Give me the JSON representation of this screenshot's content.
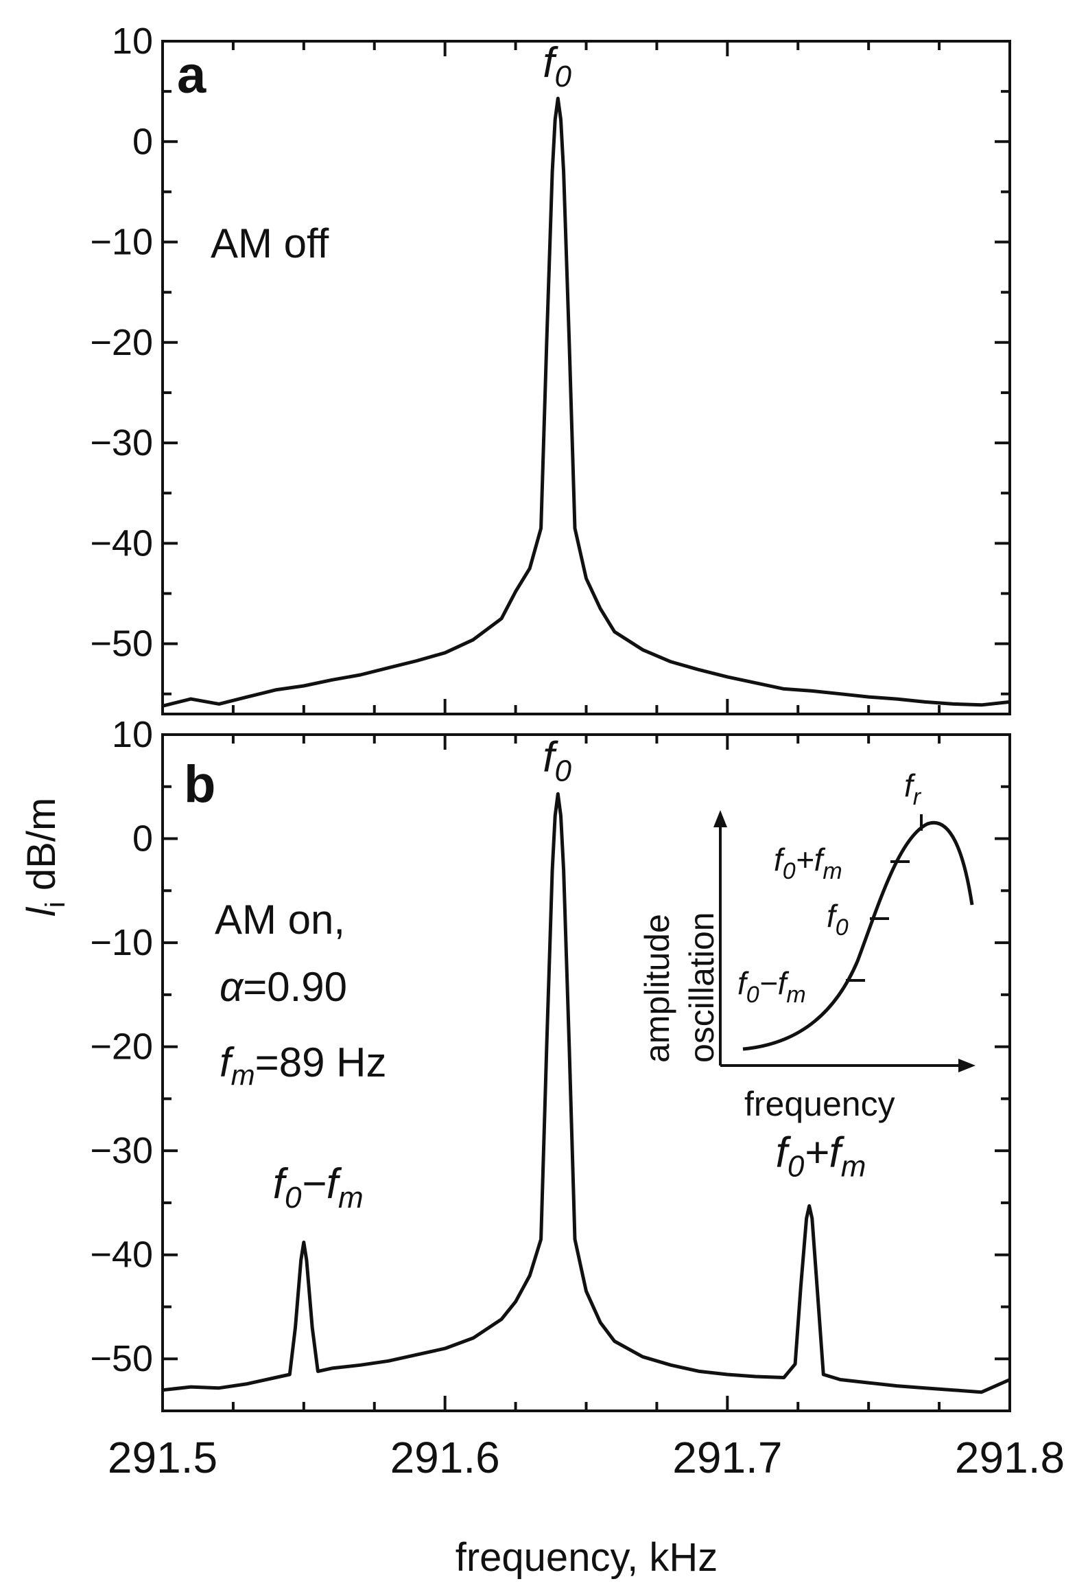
{
  "figure": {
    "x_axis": {
      "label": "frequency, kHz",
      "range": [
        291.5,
        291.8
      ],
      "tick_labels": [
        "291.5",
        "291.6",
        "291.7",
        "291.8"
      ]
    },
    "y_axis": {
      "label_main": "l",
      "label_sub": "i",
      "label_unit": " dB/m"
    }
  },
  "chart_data": [
    {
      "type": "line",
      "panel": "a",
      "note": "AM off",
      "peak_labels": [
        {
          "text": "f",
          "sub": "0",
          "x": 291.64,
          "y": 7
        }
      ],
      "xlim": [
        291.5,
        291.8
      ],
      "ylim": [
        -57,
        10
      ],
      "y_ticks": [
        10,
        0,
        -10,
        -20,
        -30,
        -40,
        -50
      ],
      "y_tick_labels": [
        "10",
        "0",
        "−10",
        "−20",
        "−30",
        "−40",
        "−50"
      ],
      "series": [
        {
          "name": "AM off",
          "x": [
            291.5,
            291.51,
            291.52,
            291.53,
            291.54,
            291.55,
            291.56,
            291.57,
            291.58,
            291.59,
            291.6,
            291.61,
            291.62,
            291.625,
            291.63,
            291.634,
            291.636,
            291.638,
            291.639,
            291.64,
            291.641,
            291.642,
            291.644,
            291.646,
            291.65,
            291.655,
            291.66,
            291.67,
            291.68,
            291.69,
            291.7,
            291.71,
            291.72,
            291.73,
            291.74,
            291.75,
            291.76,
            291.77,
            291.78,
            291.79,
            291.8
          ],
          "y": [
            -56.2,
            -55.5,
            -56.0,
            -55.3,
            -54.6,
            -54.2,
            -53.6,
            -53.1,
            -52.4,
            -51.7,
            -50.9,
            -49.6,
            -47.5,
            -44.8,
            -42.5,
            -38.5,
            -20.0,
            -3.0,
            2.2,
            4.3,
            2.2,
            -3.0,
            -20.0,
            -38.5,
            -43.5,
            -46.5,
            -48.8,
            -50.6,
            -51.8,
            -52.6,
            -53.3,
            -53.9,
            -54.5,
            -54.7,
            -55.0,
            -55.3,
            -55.5,
            -55.8,
            -56.0,
            -56.1,
            -55.8
          ]
        }
      ]
    },
    {
      "type": "line",
      "panel": "b",
      "note_lines": [
        "AM on,",
        "=0.90",
        "=89 Hz"
      ],
      "note_alpha_symbol": "α",
      "note_fm_base": "f",
      "note_fm_sub": "m",
      "peak_labels": [
        {
          "text": "f",
          "sub": "0",
          "x": 291.64,
          "y": 7
        },
        {
          "text": "f",
          "sub": "0",
          "suffix": "−f",
          "suffix_sub": "m",
          "x": 291.55,
          "y": -34
        },
        {
          "text": "f",
          "sub": "0",
          "suffix": "+f",
          "suffix_sub": "m",
          "x": 291.728,
          "y": -31
        }
      ],
      "xlim": [
        291.5,
        291.8
      ],
      "ylim": [
        -55,
        10
      ],
      "y_ticks": [
        10,
        0,
        -10,
        -20,
        -30,
        -40,
        -50
      ],
      "y_tick_labels": [
        "10",
        "0",
        "−10",
        "−20",
        "−30",
        "−40",
        "−50"
      ],
      "series": [
        {
          "name": "AM on",
          "x": [
            291.5,
            291.51,
            291.52,
            291.53,
            291.54,
            291.545,
            291.547,
            291.549,
            291.55,
            291.551,
            291.553,
            291.555,
            291.56,
            291.57,
            291.58,
            291.59,
            291.6,
            291.61,
            291.62,
            291.625,
            291.63,
            291.634,
            291.636,
            291.638,
            291.639,
            291.64,
            291.641,
            291.642,
            291.644,
            291.646,
            291.65,
            291.655,
            291.66,
            291.67,
            291.68,
            291.69,
            291.7,
            291.71,
            291.72,
            291.724,
            291.726,
            291.728,
            291.729,
            291.73,
            291.732,
            291.734,
            291.74,
            291.75,
            291.76,
            291.77,
            291.78,
            291.79,
            291.8
          ],
          "y": [
            -53.0,
            -52.7,
            -52.8,
            -52.4,
            -51.8,
            -51.5,
            -47.0,
            -40.5,
            -38.8,
            -40.5,
            -47.0,
            -51.2,
            -50.9,
            -50.6,
            -50.2,
            -49.6,
            -49.0,
            -48.0,
            -46.2,
            -44.5,
            -42.0,
            -38.5,
            -20.0,
            -3.0,
            2.2,
            4.3,
            2.2,
            -3.0,
            -20.0,
            -38.5,
            -43.5,
            -46.5,
            -48.3,
            -49.8,
            -50.6,
            -51.2,
            -51.5,
            -51.7,
            -51.8,
            -50.5,
            -43.0,
            -36.5,
            -35.3,
            -36.5,
            -44.0,
            -51.5,
            -52.0,
            -52.3,
            -52.6,
            -52.8,
            -53.0,
            -53.2,
            -52.0
          ]
        }
      ]
    }
  ],
  "inset": {
    "x_label": "frequency",
    "y_label_line1": "oscillation",
    "y_label_line2": "amplitude",
    "peak": {
      "base": "f",
      "sub": "r"
    },
    "markers": [
      {
        "base": "f",
        "sub": "0",
        "suffix": "+f",
        "suffix_sub": "m"
      },
      {
        "base": "f",
        "sub": "0"
      },
      {
        "base": "f",
        "sub": "0",
        "suffix": "−f",
        "suffix_sub": "m"
      }
    ]
  }
}
